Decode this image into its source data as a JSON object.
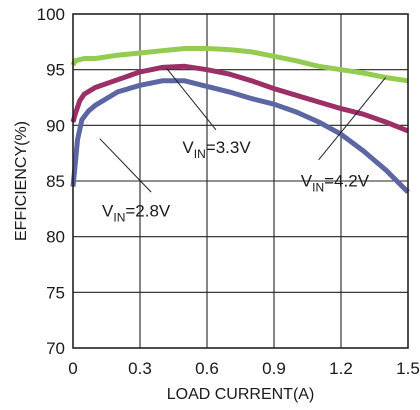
{
  "chart_data": {
    "type": "line",
    "title": "",
    "xlabel": "LOAD CURRENT(A)",
    "ylabel": "EFFICIENCY(%)",
    "xlim": [
      0,
      1.5
    ],
    "ylim": [
      70,
      100
    ],
    "x_ticks": [
      0,
      0.3,
      0.6,
      0.9,
      1.2,
      1.5
    ],
    "x_tick_labels": [
      "0",
      "0.3",
      "0.6",
      "0.9",
      "1.2",
      "1.5"
    ],
    "y_ticks": [
      70,
      75,
      80,
      85,
      90,
      95,
      100
    ],
    "y_tick_labels": [
      "70",
      "75",
      "80",
      "85",
      "90",
      "95",
      "100"
    ],
    "grid": true,
    "series": [
      {
        "name": "VIN=4.2V",
        "label_main": "V",
        "label_sub": "IN",
        "label_rest": "=4.2V",
        "color": "#94cc52",
        "x": [
          0,
          0.01,
          0.05,
          0.1,
          0.2,
          0.3,
          0.4,
          0.5,
          0.6,
          0.7,
          0.8,
          0.9,
          1.0,
          1.1,
          1.2,
          1.3,
          1.4,
          1.5
        ],
        "y": [
          95.4,
          95.8,
          96.0,
          96.0,
          96.3,
          96.5,
          96.7,
          96.9,
          96.9,
          96.8,
          96.6,
          96.2,
          95.8,
          95.3,
          95.0,
          94.7,
          94.3,
          94.0
        ]
      },
      {
        "name": "VIN=3.3V",
        "label_main": "V",
        "label_sub": "IN",
        "label_rest": "=3.3V",
        "color": "#9b2f66",
        "x": [
          0,
          0.01,
          0.03,
          0.05,
          0.1,
          0.2,
          0.3,
          0.4,
          0.5,
          0.6,
          0.7,
          0.8,
          0.9,
          1.0,
          1.1,
          1.2,
          1.3,
          1.4,
          1.5
        ],
        "y": [
          90.3,
          91.0,
          92.2,
          92.8,
          93.4,
          94.1,
          94.8,
          95.2,
          95.3,
          95.0,
          94.6,
          94.0,
          93.3,
          92.7,
          92.1,
          91.5,
          91.0,
          90.3,
          89.5
        ]
      },
      {
        "name": "VIN=2.8V",
        "label_main": "V",
        "label_sub": "IN",
        "label_rest": "=2.8V",
        "color": "#5c66a3",
        "x": [
          0,
          0.01,
          0.02,
          0.04,
          0.07,
          0.1,
          0.2,
          0.3,
          0.4,
          0.5,
          0.6,
          0.7,
          0.8,
          0.9,
          1.0,
          1.1,
          1.2,
          1.3,
          1.4,
          1.5
        ],
        "y": [
          84.5,
          86.5,
          88.7,
          90.5,
          91.3,
          91.8,
          93.0,
          93.6,
          94.0,
          94.0,
          93.5,
          93.0,
          92.4,
          91.9,
          91.2,
          90.3,
          89.2,
          87.7,
          86.0,
          84.0
        ]
      }
    ],
    "annotations": [
      {
        "series": 0,
        "label_main": "V",
        "label_sub": "IN",
        "label_rest": "=4.2V",
        "text_x": 1.02,
        "text_y": 84.5,
        "leader_from_x": 1.4,
        "leader_from_y": 94.3,
        "leader_to_x": 1.1,
        "leader_to_y": 86.9
      },
      {
        "series": 1,
        "label_main": "V",
        "label_sub": "IN",
        "label_rest": "=3.3V",
        "text_x": 0.49,
        "text_y": 87.5,
        "leader_from_x": 0.42,
        "leader_from_y": 95.1,
        "leader_to_x": 0.64,
        "leader_to_y": 89.6
      },
      {
        "series": 2,
        "label_main": "V",
        "label_sub": "IN",
        "label_rest": "=2.8V",
        "text_x": 0.13,
        "text_y": 81.8,
        "leader_from_x": 0.12,
        "leader_from_y": 88.8,
        "leader_to_x": 0.35,
        "leader_to_y": 84.0
      }
    ],
    "colors": {
      "grid": "#222222",
      "frame": "#222222",
      "text": "#1a1a1a",
      "background": "#ffffff"
    }
  }
}
